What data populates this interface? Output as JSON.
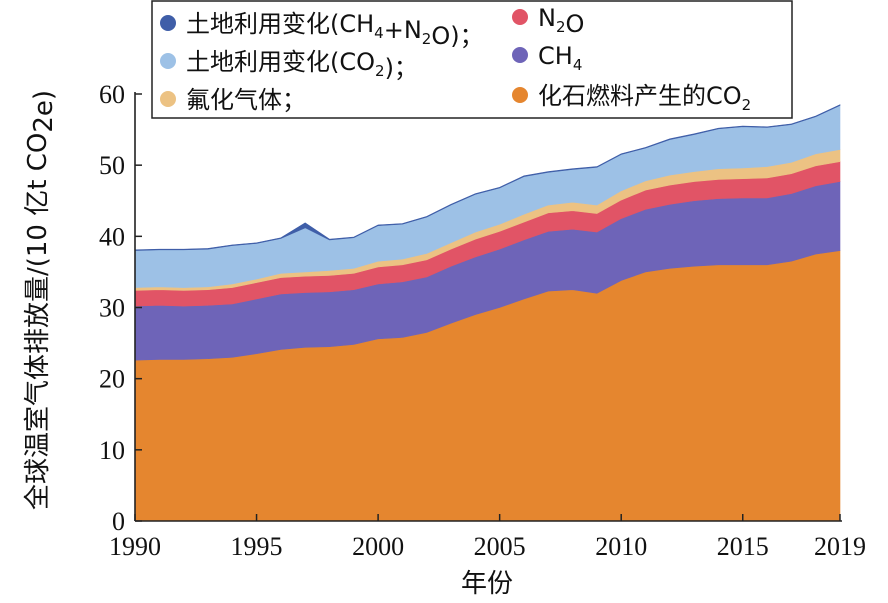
{
  "chart_data": {
    "type": "area",
    "stacked": true,
    "xlabel": "年份",
    "ylabel": "全球温室气体排放量/(10 亿t CO2e)",
    "ylim": [
      0,
      60
    ],
    "xlim": [
      1990,
      2019
    ],
    "x_ticks": [
      "1990",
      "1995",
      "2000",
      "2005",
      "2010",
      "2015",
      "2019"
    ],
    "y_ticks": [
      "0",
      "10",
      "20",
      "30",
      "40",
      "50",
      "60"
    ],
    "grid": false,
    "legend_position": "top-left",
    "x": [
      1990,
      1991,
      1992,
      1993,
      1994,
      1995,
      1996,
      1997,
      1998,
      1999,
      2000,
      2001,
      2002,
      2003,
      2004,
      2005,
      2006,
      2007,
      2008,
      2009,
      2010,
      2011,
      2012,
      2013,
      2014,
      2015,
      2016,
      2017,
      2018,
      2019
    ],
    "series": [
      {
        "name": "化石燃料产生的CO2",
        "color": "#e5862f",
        "values": [
          22.6,
          22.7,
          22.7,
          22.8,
          23.0,
          23.5,
          24.1,
          24.4,
          24.5,
          24.8,
          25.6,
          25.8,
          26.5,
          27.8,
          29.0,
          30.0,
          31.2,
          32.3,
          32.5,
          32.0,
          33.8,
          35.0,
          35.5,
          35.8,
          36.0,
          36.0,
          36.0,
          36.5,
          37.5,
          38.0
        ]
      },
      {
        "name": "CH4",
        "color": "#6e64b8",
        "values": [
          7.6,
          7.6,
          7.5,
          7.5,
          7.5,
          7.7,
          7.8,
          7.7,
          7.7,
          7.7,
          7.7,
          7.8,
          7.8,
          8.0,
          8.1,
          8.2,
          8.3,
          8.4,
          8.5,
          8.6,
          8.7,
          8.8,
          9.0,
          9.2,
          9.3,
          9.4,
          9.4,
          9.5,
          9.6,
          9.7
        ]
      },
      {
        "name": "N2O",
        "color": "#e15466",
        "values": [
          2.2,
          2.2,
          2.2,
          2.2,
          2.3,
          2.3,
          2.3,
          2.3,
          2.3,
          2.3,
          2.4,
          2.4,
          2.4,
          2.4,
          2.5,
          2.5,
          2.5,
          2.6,
          2.6,
          2.6,
          2.6,
          2.7,
          2.7,
          2.7,
          2.7,
          2.7,
          2.8,
          2.8,
          2.8,
          2.8
        ]
      },
      {
        "name": "氟化气体",
        "color": "#ecc283",
        "values": [
          0.4,
          0.4,
          0.4,
          0.4,
          0.5,
          0.5,
          0.6,
          0.6,
          0.7,
          0.7,
          0.8,
          0.8,
          0.9,
          0.9,
          1.0,
          1.0,
          1.1,
          1.1,
          1.2,
          1.2,
          1.3,
          1.3,
          1.4,
          1.4,
          1.5,
          1.5,
          1.6,
          1.6,
          1.7,
          1.7
        ]
      },
      {
        "name": "土地利用变化(CO2)",
        "color": "#9dc1e6",
        "values": [
          5.2,
          5.2,
          5.3,
          5.3,
          5.4,
          5.0,
          4.9,
          6.2,
          4.3,
          4.3,
          5.0,
          4.9,
          5.1,
          5.3,
          5.3,
          5.1,
          5.3,
          4.6,
          4.6,
          5.3,
          5.1,
          4.6,
          5.0,
          5.2,
          5.6,
          5.8,
          5.5,
          5.3,
          5.2,
          6.2
        ]
      },
      {
        "name": "土地利用变化(CH4+N2O)",
        "color": "#3f5ea8",
        "values": [
          0.1,
          0.1,
          0.1,
          0.1,
          0.1,
          0.1,
          0.1,
          0.7,
          0.1,
          0.1,
          0.1,
          0.1,
          0.1,
          0.1,
          0.1,
          0.1,
          0.1,
          0.1,
          0.1,
          0.1,
          0.1,
          0.1,
          0.1,
          0.1,
          0.1,
          0.1,
          0.1,
          0.1,
          0.1,
          0.1
        ]
      }
    ],
    "legend": [
      {
        "label": "土地利用变化(CH4+N2O)；",
        "color": "#3f5ea8"
      },
      {
        "label": "土地利用变化(CO2)；",
        "color": "#9dc1e6"
      },
      {
        "label": "氟化气体；",
        "color": "#ecc283"
      },
      {
        "label": "N2O",
        "color": "#e15466"
      },
      {
        "label": "CH4",
        "color": "#6e64b8"
      },
      {
        "label": "化石燃料产生的CO2",
        "color": "#e5862f"
      }
    ]
  }
}
